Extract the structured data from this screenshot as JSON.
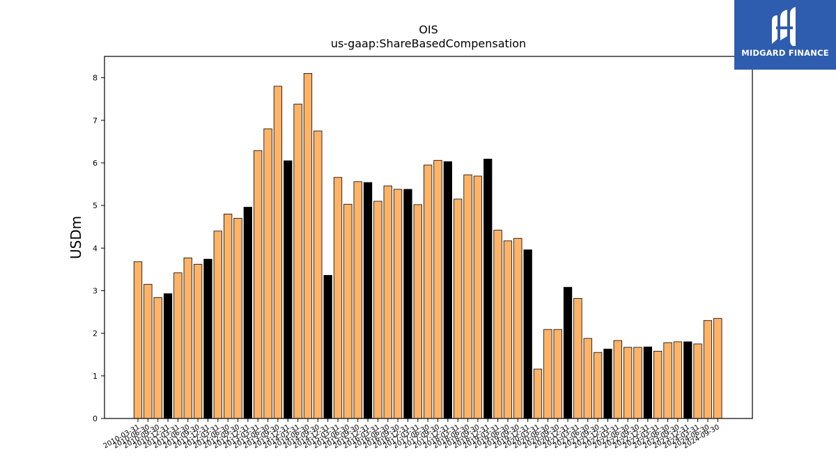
{
  "chart_data": {
    "type": "bar",
    "title": "OIS",
    "subtitle": "us-gaap:ShareBasedCompensation",
    "ylabel": "USDm",
    "xlabel": "",
    "ylim": [
      0,
      8.5
    ],
    "yticks": [
      0,
      1,
      2,
      3,
      4,
      5,
      6,
      7,
      8
    ],
    "colors": {
      "quarter": "#ffb366",
      "year_end": "#000000",
      "edge": "#000000"
    },
    "categories": [
      "2010-03-31",
      "2010-06-30",
      "2010-09-30",
      "2010-12-31",
      "2011-03-31",
      "2011-06-30",
      "2011-09-30",
      "2011-12-31",
      "2012-03-31",
      "2012-06-30",
      "2012-09-30",
      "2012-12-31",
      "2013-03-31",
      "2013-06-30",
      "2013-09-30",
      "2013-12-31",
      "2014-03-31",
      "2014-06-30",
      "2014-09-30",
      "2014-12-31",
      "2015-03-31",
      "2015-06-30",
      "2015-09-30",
      "2015-12-31",
      "2016-03-31",
      "2016-06-30",
      "2016-09-30",
      "2016-12-31",
      "2017-03-31",
      "2017-06-30",
      "2017-09-30",
      "2017-12-31",
      "2018-03-31",
      "2018-06-30",
      "2018-09-30",
      "2018-12-31",
      "2019-03-31",
      "2019-06-30",
      "2019-09-30",
      "2019-12-31",
      "2020-03-31",
      "2020-06-30",
      "2020-09-30",
      "2020-12-31",
      "2021-03-31",
      "2021-06-30",
      "2021-09-30",
      "2021-12-31",
      "2022-03-31",
      "2022-06-30",
      "2022-09-30",
      "2022-12-31",
      "2023-03-31",
      "2023-06-30",
      "2023-09-30",
      "2023-12-31",
      "2024-03-31",
      "2024-06-30",
      "2024-09-30"
    ],
    "values": [
      3.68,
      3.15,
      2.84,
      2.93,
      3.42,
      3.77,
      3.62,
      3.74,
      4.4,
      4.8,
      4.7,
      4.96,
      6.29,
      6.8,
      7.8,
      6.05,
      7.38,
      8.1,
      6.75,
      3.36,
      5.66,
      5.03,
      5.56,
      5.54,
      5.1,
      5.46,
      5.38,
      5.38,
      5.02,
      5.95,
      6.06,
      6.03,
      5.15,
      5.72,
      5.69,
      6.09,
      4.42,
      4.17,
      4.23,
      3.96,
      1.16,
      2.09,
      2.09,
      3.08,
      2.82,
      1.88,
      1.55,
      1.63,
      1.83,
      1.67,
      1.67,
      1.68,
      1.58,
      1.78,
      1.8,
      1.8,
      1.75,
      2.3,
      2.35
    ],
    "highlight": [
      false,
      false,
      false,
      true,
      false,
      false,
      false,
      true,
      false,
      false,
      false,
      true,
      false,
      false,
      false,
      true,
      false,
      false,
      false,
      true,
      false,
      false,
      false,
      true,
      false,
      false,
      false,
      true,
      false,
      false,
      false,
      true,
      false,
      false,
      false,
      true,
      false,
      false,
      false,
      true,
      false,
      false,
      false,
      true,
      false,
      false,
      false,
      true,
      false,
      false,
      false,
      true,
      false,
      false,
      false,
      true,
      false,
      false,
      false
    ],
    "grid": false,
    "legend": "none"
  },
  "logo": {
    "text": "MIDGARD FINANCE",
    "icon": "midgard-logo-icon",
    "background": "#2e5cae"
  }
}
